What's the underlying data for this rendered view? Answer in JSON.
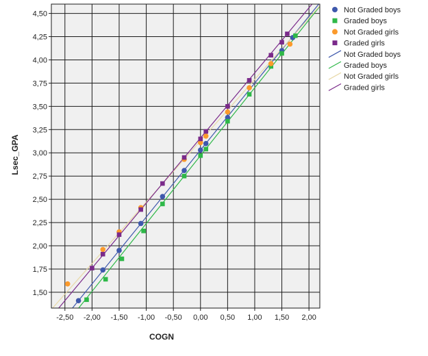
{
  "chart_data": {
    "type": "scatter",
    "xlabel": "COGN",
    "ylabel": "Lsec_GPA",
    "xlim": [
      -2.75,
      2.2
    ],
    "ylim": [
      1.33,
      4.6
    ],
    "xticks": [
      -2.5,
      -2.0,
      -1.5,
      -1.0,
      -0.5,
      0.0,
      0.5,
      1.0,
      1.5,
      2.0
    ],
    "xtick_labels": [
      "-2,50",
      "-2,00",
      "-1,50",
      "-1,00",
      "-0,50",
      "0,00",
      "0,50",
      "1,00",
      "1,50",
      "2,00"
    ],
    "yticks": [
      1.5,
      1.75,
      2.0,
      2.25,
      2.5,
      2.75,
      3.0,
      3.25,
      3.5,
      3.75,
      4.0,
      4.25,
      4.5
    ],
    "ytick_labels": [
      "1,50",
      "1,75",
      "2,00",
      "2,25",
      "2,50",
      "2,75",
      "3,00",
      "3,25",
      "3,50",
      "3,75",
      "4,00",
      "4,25",
      "4,50"
    ],
    "grid": true,
    "legend_position": "right",
    "colors": {
      "plot_background": "#f0f0f0",
      "grid": "#1a1a1a",
      "not_graded_boys": "#3e58ac",
      "graded_boys": "#2eb848",
      "not_graded_girls": "#fb9a2c",
      "graded_girls": "#7a2a8a",
      "not_graded_girls_line": "#e8d9a8"
    },
    "series": [
      {
        "name": "Not Graded boys",
        "marker": "circle",
        "color": "#3e58ac",
        "x": [
          -2.25,
          -1.8,
          -1.5,
          -1.1,
          -0.7,
          -0.3,
          0.0,
          0.1,
          0.5,
          1.5,
          1.7
        ],
        "y": [
          1.41,
          1.74,
          1.95,
          2.24,
          2.53,
          2.81,
          3.03,
          3.1,
          3.38,
          4.1,
          4.24
        ]
      },
      {
        "name": "Graded boys",
        "marker": "square",
        "color": "#2eb848",
        "x": [
          -2.1,
          -1.75,
          -1.45,
          -1.05,
          -0.7,
          -0.3,
          0.0,
          0.1,
          0.5,
          0.9,
          1.3,
          1.5,
          1.75
        ],
        "y": [
          1.42,
          1.64,
          1.86,
          2.16,
          2.45,
          2.75,
          2.97,
          3.04,
          3.34,
          3.63,
          3.93,
          4.07,
          4.26
        ]
      },
      {
        "name": "Not Graded girls",
        "marker": "circle",
        "color": "#fb9a2c",
        "x": [
          -2.45,
          -1.8,
          -1.5,
          -1.1,
          -0.3,
          0.0,
          0.1,
          0.5,
          0.9,
          1.3,
          1.65
        ],
        "y": [
          1.59,
          1.96,
          2.15,
          2.41,
          2.93,
          3.11,
          3.18,
          3.44,
          3.7,
          3.96,
          4.17
        ]
      },
      {
        "name": "Graded girls",
        "marker": "square",
        "color": "#7a2a8a",
        "x": [
          -2.0,
          -1.8,
          -1.5,
          -1.1,
          -0.7,
          -0.3,
          0.0,
          0.1,
          0.5,
          0.9,
          1.3,
          1.5,
          1.6
        ],
        "y": [
          1.76,
          1.91,
          2.12,
          2.39,
          2.67,
          2.95,
          3.15,
          3.23,
          3.5,
          3.78,
          4.05,
          4.19,
          4.28
        ]
      }
    ],
    "fit_lines": [
      {
        "name": "Not Graded boys",
        "color": "#3e58ac",
        "intercept": 3.03,
        "slope": 0.72
      },
      {
        "name": "Graded boys",
        "color": "#2eb848",
        "intercept": 2.97,
        "slope": 0.73
      },
      {
        "name": "Not Graded girls",
        "color": "#e8d9a8",
        "intercept": 3.13,
        "slope": 0.66
      },
      {
        "name": "Graded girls",
        "color": "#7a2a8a",
        "intercept": 3.16,
        "slope": 0.7
      }
    ],
    "legend": [
      {
        "label": "Not Graded boys",
        "kind": "circle",
        "color": "#3e58ac"
      },
      {
        "label": "Graded boys",
        "kind": "square",
        "color": "#2eb848"
      },
      {
        "label": "Not Graded girls",
        "kind": "circle",
        "color": "#fb9a2c"
      },
      {
        "label": "Graded girls",
        "kind": "square",
        "color": "#7a2a8a"
      },
      {
        "label": "Not Graded boys",
        "kind": "line",
        "color": "#3e58ac"
      },
      {
        "label": "Graded boys",
        "kind": "line",
        "color": "#2eb848"
      },
      {
        "label": "Not Graded girls",
        "kind": "line",
        "color": "#e8d9a8"
      },
      {
        "label": "Graded girls",
        "kind": "line",
        "color": "#7a2a8a"
      }
    ]
  }
}
